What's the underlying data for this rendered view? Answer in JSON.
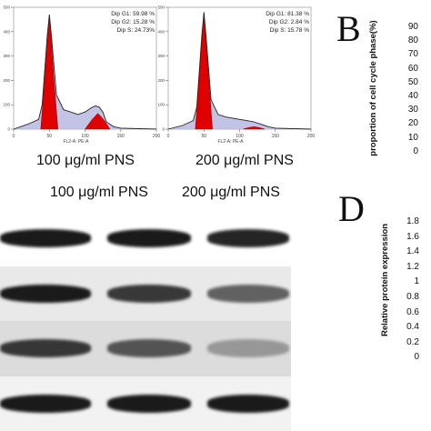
{
  "chart_data": [
    {
      "type": "area",
      "panel": "100",
      "stats": [
        "Dip G1: 59.98 %",
        "Dip G2: 15.28 %",
        "Dip S: 24.73%"
      ],
      "xlabel": "FL2-A: PE-A",
      "x_ticks": [
        "0",
        "50",
        "100",
        "150",
        "200"
      ],
      "y_ticks": [
        "0",
        "100",
        "200",
        "300",
        "400",
        "500"
      ],
      "xlim": [
        0,
        200
      ],
      "ylim": [
        0,
        500
      ],
      "histogram": {
        "x": [
          0,
          20,
          35,
          40,
          47,
          50,
          53,
          60,
          70,
          80,
          90,
          100,
          110,
          115,
          120,
          125,
          130,
          140,
          150,
          200
        ],
        "y": [
          0,
          20,
          40,
          100,
          380,
          470,
          380,
          140,
          80,
          70,
          60,
          70,
          90,
          95,
          90,
          70,
          30,
          10,
          4,
          0
        ]
      },
      "g1_peak": {
        "x": [
          38,
          44,
          50,
          56,
          62
        ],
        "y": [
          0,
          220,
          470,
          220,
          0
        ]
      },
      "g2_peak": {
        "x": [
          100,
          110,
          118,
          126,
          135
        ],
        "y": [
          0,
          40,
          65,
          40,
          0
        ]
      }
    },
    {
      "type": "area",
      "panel": "200",
      "stats": [
        "Dip G1: 81.38 %",
        "Dip G2: 2.84 %",
        "Dip S: 15.78 %"
      ],
      "xlabel": "FL2-A: PE-A",
      "x_ticks": [
        "0",
        "50",
        "100",
        "150",
        "200"
      ],
      "y_ticks": [
        "0",
        "100",
        "200",
        "300",
        "400",
        "500"
      ],
      "xlim": [
        0,
        200
      ],
      "ylim": [
        0,
        500
      ],
      "histogram": {
        "x": [
          0,
          20,
          35,
          40,
          47,
          50,
          53,
          60,
          70,
          80,
          90,
          100,
          110,
          120,
          130,
          140,
          150,
          200
        ],
        "y": [
          0,
          15,
          35,
          90,
          380,
          480,
          380,
          120,
          60,
          50,
          45,
          40,
          35,
          30,
          20,
          10,
          4,
          0
        ]
      },
      "g1_peak": {
        "x": [
          38,
          44,
          50,
          56,
          62
        ],
        "y": [
          0,
          230,
          480,
          230,
          0
        ]
      },
      "g2_peak": {
        "x": [
          105,
          112,
          120,
          128,
          135
        ],
        "y": [
          0,
          6,
          10,
          6,
          0
        ]
      }
    }
  ],
  "labels": {
    "caption_c_100": "100 μg/ml  PNS",
    "caption_c_200": "200 μg/ml  PNS",
    "caption_w_100": "100 μg/ml  PNS",
    "caption_w_200": "200 μg/ml  PNS",
    "panel_b": "B",
    "panel_d": "D",
    "ylabel_b": "proportion of cell cycle phase(%)",
    "ylabel_d": "Relative protein expression",
    "ticks_b": [
      "90",
      "80",
      "70",
      "60",
      "50",
      "40",
      "30",
      "20",
      "10",
      "0"
    ],
    "ticks_d": [
      "1.8",
      "1.6",
      "1.4",
      "1.2",
      "1",
      "0.8",
      "0.6",
      "0.4",
      "0.2",
      "0"
    ]
  },
  "blot": {
    "background": [
      "#ffffff",
      "#e9e9e9",
      "#dcdcdc",
      "#f2f2f2"
    ],
    "band_color": "#1a1a1a",
    "rows": [
      {
        "lanes": [
          1.0,
          1.0,
          0.95
        ]
      },
      {
        "lanes": [
          1.0,
          0.85,
          0.65
        ]
      },
      {
        "lanes": [
          0.85,
          0.7,
          0.35
        ]
      },
      {
        "lanes": [
          1.0,
          1.0,
          1.0
        ]
      }
    ]
  },
  "colors": {
    "peak_fill": "#e00000",
    "s_fill": "#b8b8e0",
    "line": "#222222"
  }
}
